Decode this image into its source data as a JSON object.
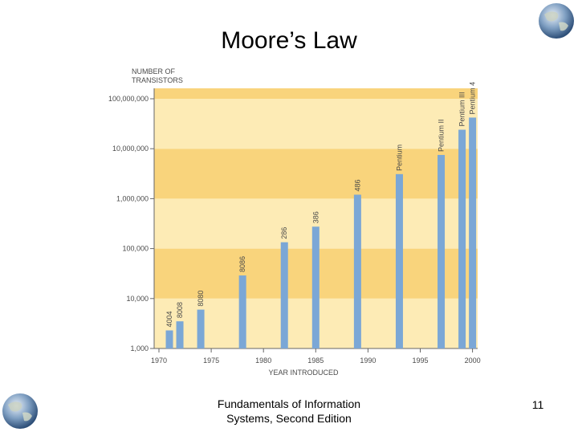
{
  "slide": {
    "title": "Moore’s Law",
    "footer_line1": "Fundamentals of Information",
    "footer_line2": "Systems, Second Edition",
    "page_number": "11"
  },
  "colors": {
    "band_light": "#fdebb5",
    "band_dark": "#f9d47c",
    "bar": "#7ba7d6",
    "axis": "#666666",
    "text": "#4a4a4a"
  },
  "chart_data": {
    "type": "bar",
    "title": "",
    "ylabel": "NUMBER OF TRANSISTORS",
    "xlabel": "YEAR INTRODUCED",
    "y_scale": "log10",
    "ylim": [
      1000,
      1000000000
    ],
    "xlim": [
      1970,
      2001
    ],
    "y_ticks": [
      {
        "value": 1000,
        "label": "1,000"
      },
      {
        "value": 10000,
        "label": "10,000"
      },
      {
        "value": 100000,
        "label": "100,000"
      },
      {
        "value": 1000000,
        "label": "1,000,000"
      },
      {
        "value": 10000000,
        "label": "10,000,000"
      },
      {
        "value": 100000000,
        "label": "100,000,000"
      }
    ],
    "x_ticks": [
      {
        "value": 1970,
        "label": "1970"
      },
      {
        "value": 1975,
        "label": "1975"
      },
      {
        "value": 1980,
        "label": "1980"
      },
      {
        "value": 1985,
        "label": "1985"
      },
      {
        "value": 1990,
        "label": "1990"
      },
      {
        "value": 1995,
        "label": "1995"
      },
      {
        "value": 2000,
        "label": "2000"
      }
    ],
    "grid": false,
    "bars": [
      {
        "label": "4004",
        "year": 1971,
        "value": 2300
      },
      {
        "label": "8008",
        "year": 1972,
        "value": 3500
      },
      {
        "label": "8080",
        "year": 1974,
        "value": 6000
      },
      {
        "label": "8086",
        "year": 1978,
        "value": 29000
      },
      {
        "label": "286",
        "year": 1982,
        "value": 134000
      },
      {
        "label": "386",
        "year": 1985,
        "value": 275000
      },
      {
        "label": "486",
        "year": 1989,
        "value": 1200000
      },
      {
        "label": "Pentium",
        "year": 1993,
        "value": 3100000
      },
      {
        "label": "Pentium II",
        "year": 1997,
        "value": 7500000
      },
      {
        "label": "Pentium III",
        "year": 1999,
        "value": 24000000
      },
      {
        "label": "Pentium 4",
        "year": 2000,
        "value": 42000000
      }
    ]
  }
}
